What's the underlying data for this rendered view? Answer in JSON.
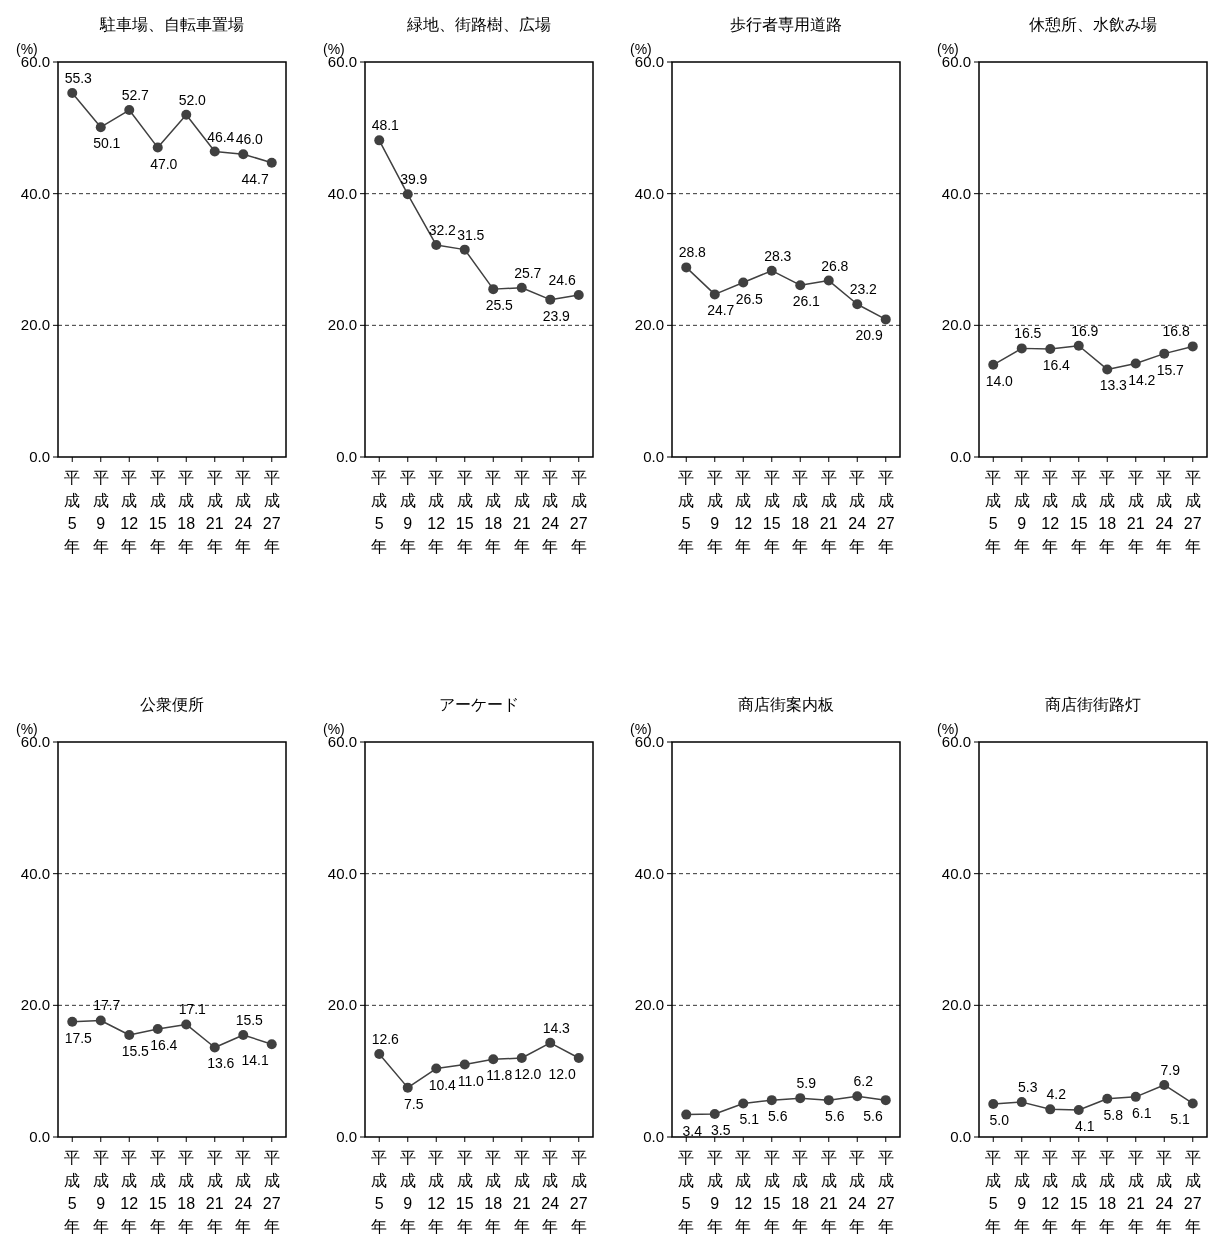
{
  "chart_data": [
    {
      "type": "line",
      "title": "駐車場、自転車置場",
      "ylabel": "(%)",
      "categories": [
        "平成5年",
        "平成9年",
        "平成12年",
        "平成15年",
        "平成18年",
        "平成21年",
        "平成24年",
        "平成27年"
      ],
      "series": [
        {
          "color": "#404040",
          "values": [
            55.3,
            50.1,
            52.7,
            47.0,
            52.0,
            46.4,
            46.0,
            44.7
          ],
          "value_labels": [
            "55.3",
            "50.1",
            "52.7",
            "47.0",
            "52.0",
            "46.4",
            "46.0",
            "44.7"
          ]
        }
      ],
      "ylim": [
        0,
        60
      ],
      "yticks": [
        {
          "value": 0,
          "label": "0.0"
        },
        {
          "value": 20,
          "label": "20.0"
        },
        {
          "value": 40,
          "label": "40.0"
        },
        {
          "value": 60,
          "label": "60.0"
        }
      ],
      "grid": "y",
      "marker": "circle"
    },
    {
      "type": "line",
      "title": "緑地、街路樹、広場",
      "ylabel": "(%)",
      "categories": [
        "平成5年",
        "平成9年",
        "平成12年",
        "平成15年",
        "平成18年",
        "平成21年",
        "平成24年",
        "平成27年"
      ],
      "series": [
        {
          "color": "#404040",
          "values": [
            48.1,
            39.9,
            32.2,
            31.5,
            25.5,
            25.7,
            23.9,
            24.6
          ],
          "value_labels": [
            "48.1",
            "39.9",
            "32.2",
            "31.5",
            "25.5",
            "25.7",
            "23.9",
            "24.6"
          ]
        }
      ],
      "ylim": [
        0,
        60
      ],
      "yticks": [
        {
          "value": 0,
          "label": "0.0"
        },
        {
          "value": 20,
          "label": "20.0"
        },
        {
          "value": 40,
          "label": "40.0"
        },
        {
          "value": 60,
          "label": "60.0"
        }
      ],
      "grid": "y",
      "marker": "circle"
    },
    {
      "type": "line",
      "title": "歩行者専用道路",
      "ylabel": "(%)",
      "categories": [
        "平成5年",
        "平成9年",
        "平成12年",
        "平成15年",
        "平成18年",
        "平成21年",
        "平成24年",
        "平成27年"
      ],
      "series": [
        {
          "color": "#404040",
          "values": [
            28.8,
            24.7,
            26.5,
            28.3,
            26.1,
            26.8,
            23.2,
            20.9
          ],
          "value_labels": [
            "28.8",
            "24.7",
            "26.5",
            "28.3",
            "26.1",
            "26.8",
            "23.2",
            "20.9"
          ]
        }
      ],
      "ylim": [
        0,
        60
      ],
      "yticks": [
        {
          "value": 0,
          "label": "0.0"
        },
        {
          "value": 20,
          "label": "20.0"
        },
        {
          "value": 40,
          "label": "40.0"
        },
        {
          "value": 60,
          "label": "60.0"
        }
      ],
      "grid": "y",
      "marker": "circle"
    },
    {
      "type": "line",
      "title": "休憩所、水飲み場",
      "ylabel": "(%)",
      "categories": [
        "平成5年",
        "平成9年",
        "平成12年",
        "平成15年",
        "平成18年",
        "平成21年",
        "平成24年",
        "平成27年"
      ],
      "series": [
        {
          "color": "#404040",
          "values": [
            14.0,
            16.5,
            16.4,
            16.9,
            13.3,
            14.2,
            15.7,
            16.8
          ],
          "value_labels": [
            "14.0",
            "16.5",
            "16.4",
            "16.9",
            "13.3",
            "14.2",
            "15.7",
            "16.8"
          ]
        }
      ],
      "ylim": [
        0,
        60
      ],
      "yticks": [
        {
          "value": 0,
          "label": "0.0"
        },
        {
          "value": 20,
          "label": "20.0"
        },
        {
          "value": 40,
          "label": "40.0"
        },
        {
          "value": 60,
          "label": "60.0"
        }
      ],
      "grid": "y",
      "marker": "circle"
    },
    {
      "type": "line",
      "title": "公衆便所",
      "ylabel": "(%)",
      "categories": [
        "平成5年",
        "平成9年",
        "平成12年",
        "平成15年",
        "平成18年",
        "平成21年",
        "平成24年",
        "平成27年"
      ],
      "series": [
        {
          "color": "#404040",
          "values": [
            17.5,
            17.7,
            15.5,
            16.4,
            17.1,
            13.6,
            15.5,
            14.1
          ],
          "value_labels": [
            "17.5",
            "17.7",
            "15.5",
            "16.4",
            "17.1",
            "13.6",
            "15.5",
            "14.1"
          ]
        }
      ],
      "ylim": [
        0,
        60
      ],
      "yticks": [
        {
          "value": 0,
          "label": "0.0"
        },
        {
          "value": 20,
          "label": "20.0"
        },
        {
          "value": 40,
          "label": "40.0"
        },
        {
          "value": 60,
          "label": "60.0"
        }
      ],
      "grid": "y",
      "marker": "circle"
    },
    {
      "type": "line",
      "title": "アーケード",
      "ylabel": "(%)",
      "categories": [
        "平成5年",
        "平成9年",
        "平成12年",
        "平成15年",
        "平成18年",
        "平成21年",
        "平成24年",
        "平成27年"
      ],
      "series": [
        {
          "color": "#404040",
          "values": [
            12.6,
            7.5,
            10.4,
            11.0,
            11.8,
            12.0,
            14.3,
            12.0
          ],
          "value_labels": [
            "12.6",
            "7.5",
            "10.4",
            "11.0",
            "11.8",
            "12.0",
            "14.3",
            "12.0"
          ]
        }
      ],
      "ylim": [
        0,
        60
      ],
      "yticks": [
        {
          "value": 0,
          "label": "0.0"
        },
        {
          "value": 20,
          "label": "20.0"
        },
        {
          "value": 40,
          "label": "40.0"
        },
        {
          "value": 60,
          "label": "60.0"
        }
      ],
      "grid": "y",
      "marker": "circle"
    },
    {
      "type": "line",
      "title": "商店街案内板",
      "ylabel": "(%)",
      "categories": [
        "平成5年",
        "平成9年",
        "平成12年",
        "平成15年",
        "平成18年",
        "平成21年",
        "平成24年",
        "平成27年"
      ],
      "series": [
        {
          "color": "#404040",
          "values": [
            3.4,
            3.5,
            5.1,
            5.6,
            5.9,
            5.6,
            6.2,
            5.6
          ],
          "value_labels": [
            "3.4",
            "3.5",
            "5.1",
            "5.6",
            "5.9",
            "5.6",
            "6.2",
            "5.6"
          ]
        }
      ],
      "ylim": [
        0,
        60
      ],
      "yticks": [
        {
          "value": 0,
          "label": "0.0"
        },
        {
          "value": 20,
          "label": "20.0"
        },
        {
          "value": 40,
          "label": "40.0"
        },
        {
          "value": 60,
          "label": "60.0"
        }
      ],
      "grid": "y",
      "marker": "circle"
    },
    {
      "type": "line",
      "title": "商店街街路灯",
      "ylabel": "(%)",
      "categories": [
        "平成5年",
        "平成9年",
        "平成12年",
        "平成15年",
        "平成18年",
        "平成21年",
        "平成24年",
        "平成27年"
      ],
      "series": [
        {
          "color": "#404040",
          "values": [
            5.0,
            5.3,
            4.2,
            4.1,
            5.8,
            6.1,
            7.9,
            5.1
          ],
          "value_labels": [
            "5.0",
            "5.3",
            "4.2",
            "4.1",
            "5.8",
            "6.1",
            "7.9",
            "5.1"
          ]
        }
      ],
      "ylim": [
        0,
        60
      ],
      "yticks": [
        {
          "value": 0,
          "label": "0.0"
        },
        {
          "value": 20,
          "label": "20.0"
        },
        {
          "value": 40,
          "label": "40.0"
        },
        {
          "value": 60,
          "label": "60.0"
        }
      ],
      "grid": "y",
      "marker": "circle"
    }
  ]
}
